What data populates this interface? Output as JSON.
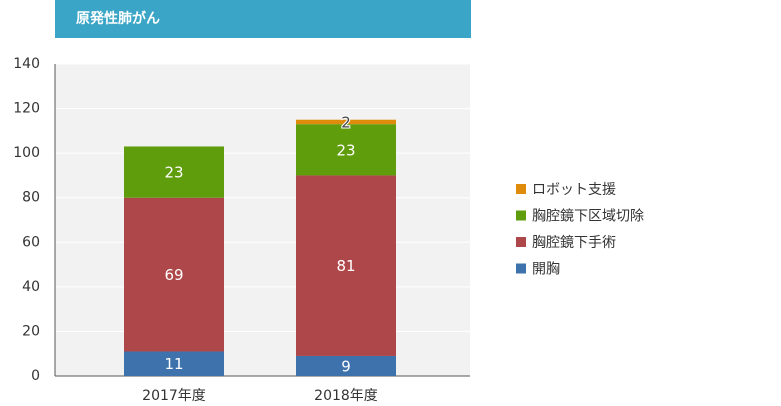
{
  "chart_data": {
    "type": "stacked-bar",
    "title": "原発性肺がん",
    "categories": [
      "2017年度",
      "2018年度"
    ],
    "series": [
      {
        "name": "開胸",
        "color": "#3e72ad",
        "values": [
          11,
          9
        ]
      },
      {
        "name": "胸腔鏡下手術",
        "color": "#ae474a",
        "values": [
          69,
          81
        ]
      },
      {
        "name": "胸腔鏡下区域切除",
        "color": "#5f9d0c",
        "values": [
          23,
          23
        ]
      },
      {
        "name": "ロボット支援",
        "color": "#df8b0b",
        "values": [
          null,
          2
        ]
      }
    ],
    "ylim": [
      0,
      140
    ],
    "yticks": [
      0,
      20,
      40,
      60,
      80,
      100,
      120,
      140
    ],
    "grid": true
  }
}
